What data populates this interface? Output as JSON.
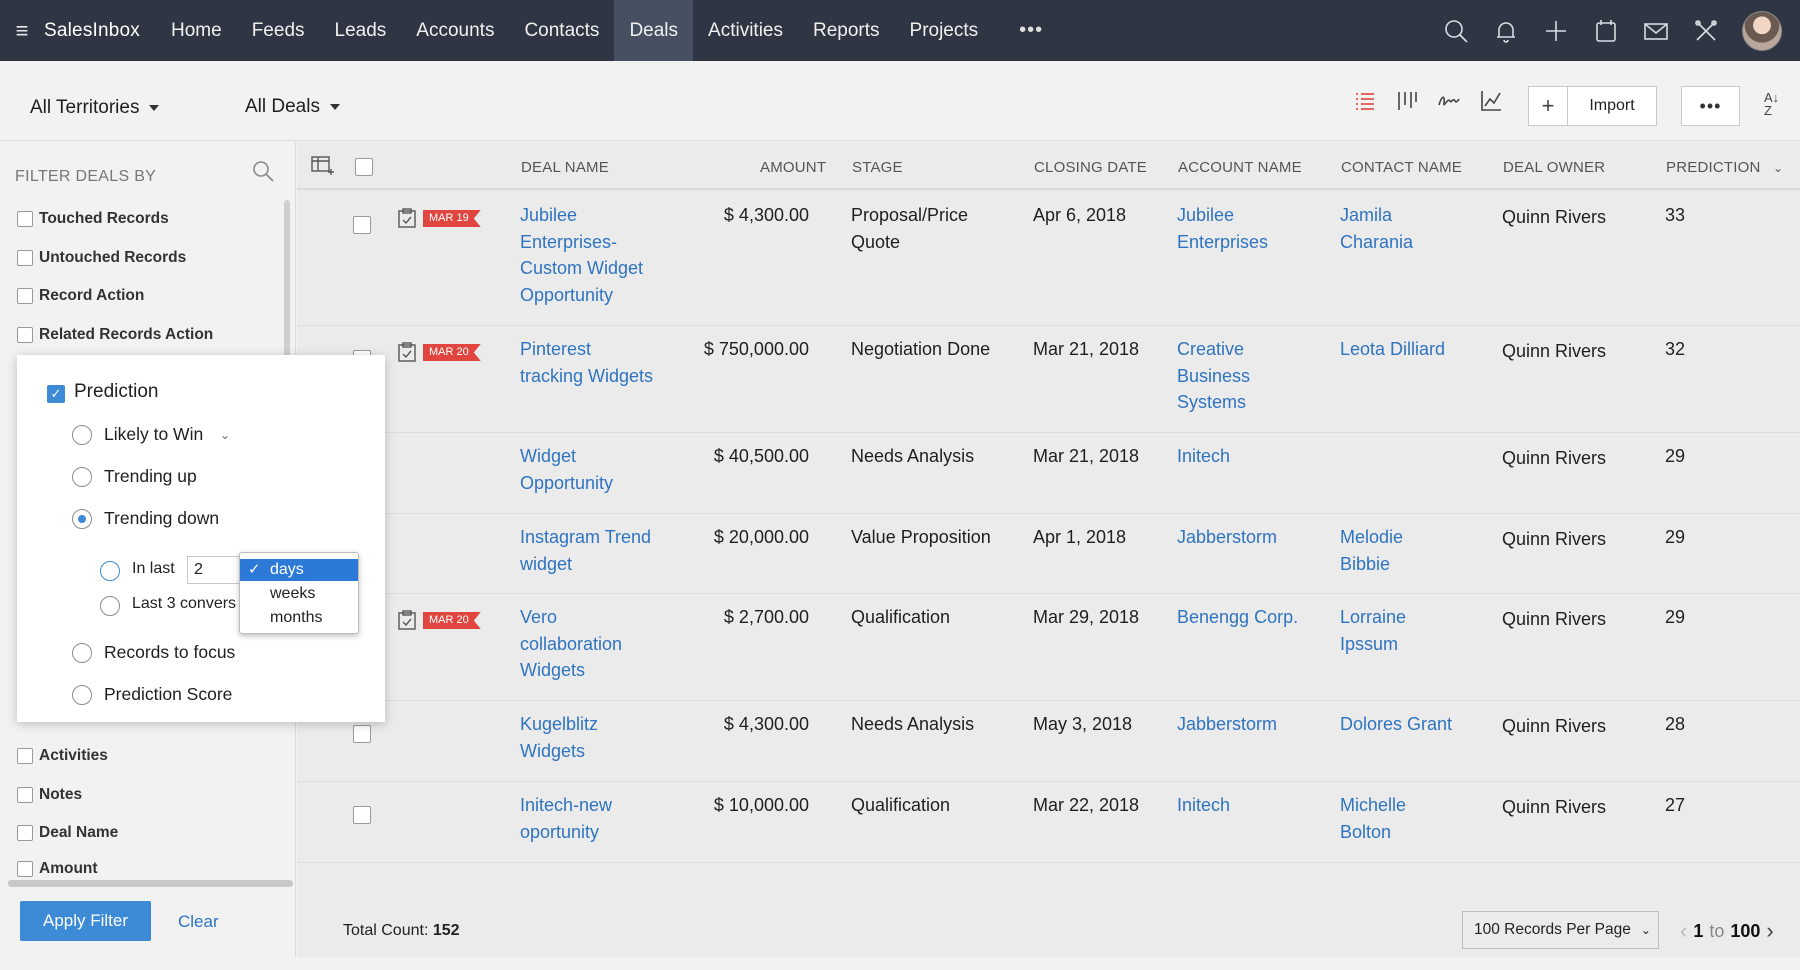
{
  "topbar": {
    "brand": "SalesInbox",
    "nav": [
      {
        "label": "Home"
      },
      {
        "label": "Feeds"
      },
      {
        "label": "Leads"
      },
      {
        "label": "Accounts"
      },
      {
        "label": "Contacts"
      },
      {
        "label": "Deals"
      },
      {
        "label": "Activities"
      },
      {
        "label": "Reports"
      },
      {
        "label": "Projects"
      }
    ],
    "more": "•••",
    "active": "Deals"
  },
  "subheader": {
    "territory": "All Territories",
    "view": "All Deals",
    "import_label": "Import",
    "plus_label": "+",
    "more_label": "•••"
  },
  "filter": {
    "title": "FILTER DEALS BY",
    "items": [
      "Touched Records",
      "Untouched Records",
      "Record Action",
      "Related Records Action"
    ],
    "bottom_items": [
      "Activities",
      "Notes",
      "Deal Name",
      "Amount"
    ],
    "apply_label": "Apply Filter",
    "clear_label": "Clear"
  },
  "prediction": {
    "title": "Prediction",
    "options": [
      "Likely to Win",
      "Trending up",
      "Trending down",
      "Records to focus",
      "Prediction Score"
    ],
    "selected": "Trending down",
    "in_last_label": "In last",
    "in_last_value": "2",
    "last_conv_label": "Last 3 convers",
    "unit_options": [
      "days",
      "weeks",
      "months"
    ],
    "unit_selected": "days"
  },
  "table": {
    "columns": [
      "DEAL NAME",
      "AMOUNT",
      "STAGE",
      "CLOSING DATE",
      "ACCOUNT NAME",
      "CONTACT NAME",
      "DEAL OWNER",
      "PREDICTION"
    ],
    "rows": [
      {
        "tag": "MAR 19",
        "deal": [
          "Jubilee",
          "Enterprises-",
          "Custom Widget",
          "Opportunity"
        ],
        "amount": "$ 4,300.00",
        "stage": [
          "Proposal/Price",
          "Quote"
        ],
        "closing": "Apr 6, 2018",
        "account": [
          "Jubilee",
          "Enterprises"
        ],
        "contact": [
          "Jamila",
          "Charania"
        ],
        "owner": "Quinn Rivers",
        "prediction": "33"
      },
      {
        "tag": "MAR 20",
        "deal": [
          "Pinterest",
          "tracking Widgets"
        ],
        "amount": "$ 750,000.00",
        "stage": [
          "Negotiation Done"
        ],
        "closing": "Mar 21, 2018",
        "account": [
          "Creative",
          "Business",
          "Systems"
        ],
        "contact": [
          "Leota Dilliard"
        ],
        "owner": "Quinn Rivers",
        "prediction": "32"
      },
      {
        "tag": "",
        "deal": [
          "Widget",
          "Opportunity"
        ],
        "amount": "$ 40,500.00",
        "stage": [
          "Needs Analysis"
        ],
        "closing": "Mar 21, 2018",
        "account": [
          "Initech"
        ],
        "contact": [],
        "owner": "Quinn Rivers",
        "prediction": "29"
      },
      {
        "tag": "",
        "deal": [
          "Instagram Trend",
          "widget"
        ],
        "amount": "$ 20,000.00",
        "stage": [
          "Value Proposition"
        ],
        "closing": "Apr 1, 2018",
        "account": [
          "Jabberstorm"
        ],
        "contact": [
          "Melodie",
          "Bibbie"
        ],
        "owner": "Quinn Rivers",
        "prediction": "29"
      },
      {
        "tag": "MAR 20",
        "deal": [
          "Vero",
          "collaboration",
          "Widgets"
        ],
        "amount": "$ 2,700.00",
        "stage": [
          "Qualification"
        ],
        "closing": "Mar 29, 2018",
        "account": [
          "Benengg Corp."
        ],
        "contact": [
          "Lorraine",
          "Ipssum"
        ],
        "owner": "Quinn Rivers",
        "prediction": "29"
      },
      {
        "tag": "",
        "deal": [
          "Kugelblitz",
          "Widgets"
        ],
        "amount": "$ 4,300.00",
        "stage": [
          "Needs Analysis"
        ],
        "closing": "May 3, 2018",
        "account": [
          "Jabberstorm"
        ],
        "contact": [
          "Dolores Grant"
        ],
        "owner": "Quinn Rivers",
        "prediction": "28"
      },
      {
        "tag": "",
        "deal": [
          "Initech-new",
          "oportunity"
        ],
        "amount": "$ 10,000.00",
        "stage": [
          "Qualification"
        ],
        "closing": "Mar 22, 2018",
        "account": [
          "Initech"
        ],
        "contact": [
          "Michelle",
          "Bolton"
        ],
        "owner": "Quinn Rivers",
        "prediction": "27"
      }
    ]
  },
  "footer": {
    "count_label": "Total Count:",
    "count": "152",
    "per_page": "100 Records Per Page",
    "from": "1",
    "to_label": "to",
    "to": "100"
  },
  "colors": {
    "accent": "#3d8bd6",
    "link": "#2f74c0",
    "tag": "#e0463f",
    "topbar": "#2f3542"
  }
}
